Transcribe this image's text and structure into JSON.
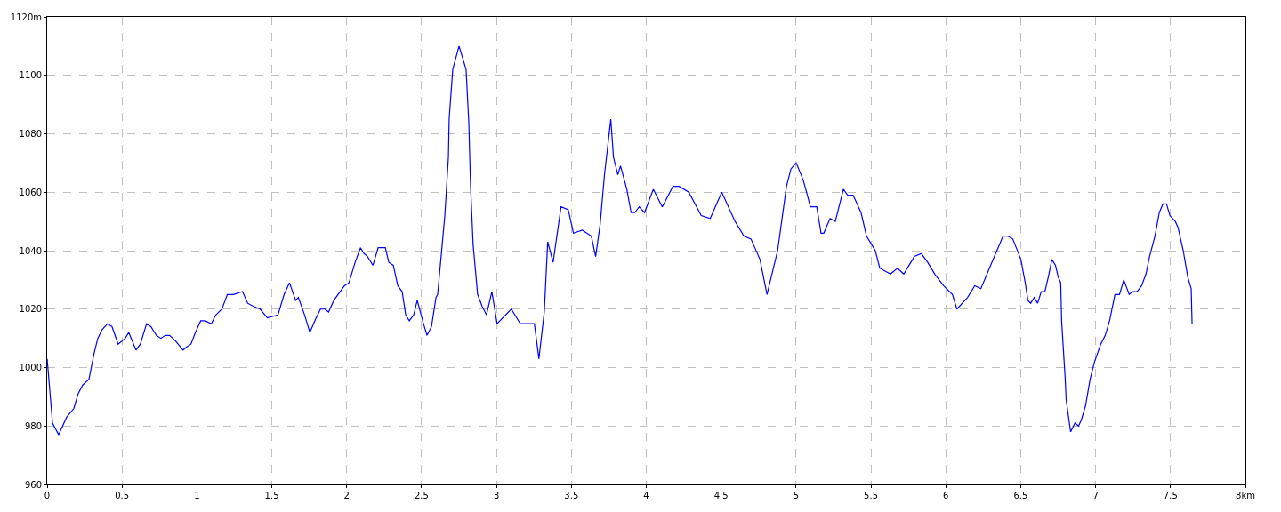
{
  "chart_data": {
    "type": "line",
    "x": [
      0,
      0.036,
      0.077,
      0.13,
      0.178,
      0.207,
      0.237,
      0.279,
      0.314,
      0.338,
      0.367,
      0.403,
      0.433,
      0.474,
      0.521,
      0.545,
      0.593,
      0.622,
      0.664,
      0.693,
      0.729,
      0.759,
      0.788,
      0.818,
      0.859,
      0.907,
      0.93,
      0.96,
      0.99,
      1.025,
      1.055,
      1.096,
      1.126,
      1.167,
      1.203,
      1.244,
      1.304,
      1.339,
      1.375,
      1.422,
      1.47,
      1.541,
      1.582,
      1.618,
      1.659,
      1.677,
      1.719,
      1.754,
      1.796,
      1.825,
      1.855,
      1.879,
      1.914,
      1.956,
      1.985,
      2.015,
      2.056,
      2.092,
      2.116,
      2.139,
      2.175,
      2.21,
      2.258,
      2.281,
      2.311,
      2.341,
      2.37,
      2.394,
      2.418,
      2.447,
      2.471,
      2.507,
      2.536,
      2.566,
      2.596,
      2.607,
      2.625,
      2.655,
      2.679,
      2.684,
      2.708,
      2.75,
      2.797,
      2.815,
      2.827,
      2.844,
      2.874,
      2.904,
      2.933,
      2.969,
      3.004,
      3.099,
      3.159,
      3.253,
      3.283,
      3.319,
      3.342,
      3.378,
      3.431,
      3.479,
      3.514,
      3.573,
      3.633,
      3.662,
      3.692,
      3.721,
      3.763,
      3.781,
      3.81,
      3.828,
      3.87,
      3.899,
      3.923,
      3.953,
      3.988,
      4.047,
      4.107,
      4.178,
      4.219,
      4.284,
      4.367,
      4.427,
      4.504,
      4.593,
      4.652,
      4.699,
      4.759,
      4.806,
      4.877,
      4.936,
      4.966,
      5.001,
      5.049,
      5.096,
      5.138,
      5.167,
      5.185,
      5.227,
      5.262,
      5.316,
      5.345,
      5.381,
      5.434,
      5.47,
      5.529,
      5.559,
      5.63,
      5.677,
      5.719,
      5.79,
      5.837,
      5.879,
      5.926,
      5.985,
      6.044,
      6.074,
      6.145,
      6.193,
      6.234,
      6.299,
      6.382,
      6.412,
      6.447,
      6.501,
      6.53,
      6.548,
      6.566,
      6.59,
      6.613,
      6.637,
      6.661,
      6.684,
      6.708,
      6.732,
      6.75,
      6.767,
      6.773,
      6.797,
      6.803,
      6.833,
      6.862,
      6.886,
      6.904,
      6.933,
      6.963,
      6.993,
      7.034,
      7.064,
      7.093,
      7.129,
      7.159,
      7.188,
      7.224,
      7.247,
      7.277,
      7.307,
      7.336,
      7.36,
      7.396,
      7.425,
      7.449,
      7.473,
      7.496,
      7.532,
      7.55,
      7.585,
      7.615,
      7.638,
      7.644
    ],
    "series": [
      {
        "color": "#0000ff",
        "values": [
          1003,
          981,
          977,
          983,
          986,
          991,
          994,
          996,
          1005,
          1010,
          1013,
          1015,
          1014,
          1008,
          1010,
          1012,
          1006,
          1008,
          1015,
          1014,
          1011,
          1010,
          1011,
          1011,
          1009,
          1006,
          1007,
          1008,
          1012,
          1016,
          1016,
          1015,
          1018,
          1020,
          1025,
          1025,
          1026,
          1022,
          1021,
          1020,
          1017,
          1018,
          1025,
          1029,
          1023,
          1024,
          1018,
          1012,
          1017,
          1020,
          1020,
          1019,
          1023,
          1026,
          1028,
          1029,
          1036,
          1041,
          1039,
          1038,
          1035,
          1041,
          1041,
          1036,
          1035,
          1028,
          1026,
          1018,
          1016,
          1018,
          1023,
          1016,
          1011,
          1014,
          1024,
          1025,
          1035,
          1052,
          1072,
          1085,
          1102,
          1110,
          1102,
          1084,
          1062,
          1042,
          1025,
          1021,
          1018,
          1026,
          1015,
          1020,
          1015,
          1015,
          1003,
          1019,
          1043,
          1036,
          1055,
          1054,
          1046,
          1047,
          1045,
          1038,
          1049,
          1066,
          1085,
          1072,
          1066,
          1069,
          1061,
          1053,
          1053,
          1055,
          1053,
          1061,
          1055,
          1062,
          1062,
          1060,
          1052,
          1051,
          1060,
          1050,
          1045,
          1044,
          1037,
          1025,
          1040,
          1062,
          1068,
          1070,
          1064,
          1055,
          1055,
          1046,
          1046,
          1051,
          1050,
          1061,
          1059,
          1059,
          1053,
          1045,
          1040,
          1034,
          1032,
          1034,
          1032,
          1038,
          1039,
          1036,
          1032,
          1028,
          1025,
          1020,
          1024,
          1028,
          1027,
          1035,
          1045,
          1045,
          1044,
          1037,
          1029,
          1023,
          1022,
          1024,
          1022,
          1026,
          1026,
          1031,
          1037,
          1035,
          1031,
          1029,
          1016,
          996,
          989,
          978,
          981,
          980,
          982,
          987,
          996,
          1002,
          1008,
          1011,
          1016,
          1025,
          1025,
          1030,
          1025,
          1026,
          1026,
          1028,
          1032,
          1038,
          1045,
          1053,
          1056,
          1056,
          1052,
          1050,
          1048,
          1040,
          1031,
          1027,
          1015
        ]
      }
    ],
    "xlim": [
      0,
      8
    ],
    "ylim": [
      960,
      1120
    ],
    "xticks": [
      0,
      0.5,
      1,
      1.5,
      2,
      2.5,
      3,
      3.5,
      4,
      4.5,
      5,
      5.5,
      6,
      6.5,
      7,
      7.5,
      {
        "value": 8,
        "label": "8km"
      }
    ],
    "yticks": [
      960,
      980,
      1000,
      1020,
      1040,
      1060,
      1080,
      1100,
      {
        "value": 1120,
        "label": "1120m"
      }
    ],
    "grid": true,
    "marker": "none",
    "line_style": "solid"
  }
}
